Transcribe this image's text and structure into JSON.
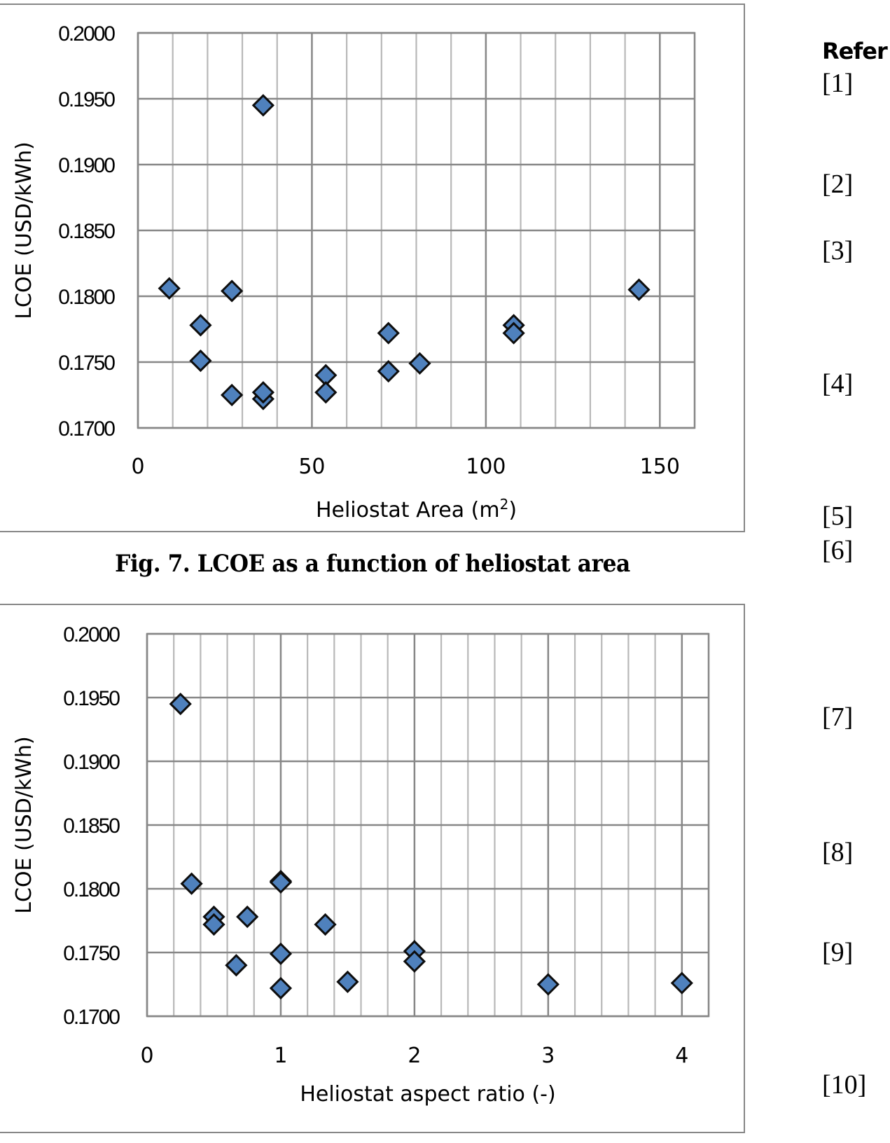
{
  "chart_data": [
    {
      "type": "scatter",
      "id": "fig7",
      "title": "",
      "xlabel": "Heliostat Area (m",
      "xlabel_sup": "2",
      "xlabel_suffix": ")",
      "ylabel": "LCOE (USD/kWh)",
      "xlim": [
        0,
        160
      ],
      "ylim": [
        0.17,
        0.2
      ],
      "x_major_ticks": [
        0,
        50,
        100,
        150
      ],
      "x_tick_labels": [
        "0",
        "50",
        "100",
        "150"
      ],
      "x_minor_step": 10,
      "y_ticks": [
        0.17,
        0.175,
        0.18,
        0.185,
        0.19,
        0.195,
        0.2
      ],
      "y_tick_labels": [
        "0.1700",
        "0.1750",
        "0.1800",
        "0.1850",
        "0.1900",
        "0.1950",
        "0.2000"
      ],
      "grid": true,
      "legend": "none",
      "marker": "diamond",
      "marker_color": "#4f81bd",
      "series": [
        {
          "name": "LCOE",
          "points": [
            [
              9,
              0.1806
            ],
            [
              18,
              0.1778
            ],
            [
              18,
              0.1751
            ],
            [
              27,
              0.1804
            ],
            [
              27,
              0.1725
            ],
            [
              36,
              0.1945
            ],
            [
              36,
              0.1722
            ],
            [
              36,
              0.1727
            ],
            [
              54,
              0.174
            ],
            [
              54,
              0.1727
            ],
            [
              72,
              0.1772
            ],
            [
              72,
              0.1743
            ],
            [
              81,
              0.1749
            ],
            [
              108,
              0.1778
            ],
            [
              108,
              0.1772
            ],
            [
              144,
              0.1805
            ]
          ]
        }
      ]
    },
    {
      "type": "scatter",
      "id": "fig8",
      "title": "",
      "xlabel": "Heliostat aspect ratio (-)",
      "ylabel": "LCOE (USD/kWh)",
      "xlim": [
        0,
        4.2
      ],
      "ylim": [
        0.17,
        0.2
      ],
      "x_major_ticks": [
        0,
        1,
        2,
        3,
        4
      ],
      "x_tick_labels": [
        "0",
        "1",
        "2",
        "3",
        "4"
      ],
      "x_minor_step": 0.2,
      "y_ticks": [
        0.17,
        0.175,
        0.18,
        0.185,
        0.19,
        0.195,
        0.2
      ],
      "y_tick_labels": [
        "0.1700",
        "0.1750",
        "0.1800",
        "0.1850",
        "0.1900",
        "0.1950",
        "0.2000"
      ],
      "grid": true,
      "legend": "none",
      "marker": "diamond",
      "marker_color": "#4f81bd",
      "series": [
        {
          "name": "LCOE",
          "points": [
            [
              0.25,
              0.1945
            ],
            [
              0.333,
              0.1804
            ],
            [
              0.5,
              0.1778
            ],
            [
              0.5,
              0.1772
            ],
            [
              0.667,
              0.174
            ],
            [
              0.75,
              0.1778
            ],
            [
              1,
              0.1806
            ],
            [
              1,
              0.1805
            ],
            [
              1,
              0.1749
            ],
            [
              1,
              0.1722
            ],
            [
              1.333,
              0.1772
            ],
            [
              1.5,
              0.1727
            ],
            [
              2,
              0.1751
            ],
            [
              2,
              0.1743
            ],
            [
              3,
              0.1725
            ],
            [
              4,
              0.1726
            ]
          ]
        }
      ]
    }
  ],
  "captions": {
    "fig7": "Fig. 7. LCOE as a function of heliostat area"
  },
  "references": {
    "heading": "Refer",
    "items": [
      "[1]",
      "[2]",
      "[3]",
      "[4]",
      "[5]",
      "[6]",
      "[7]",
      "[8]",
      "[9]",
      "[10]"
    ]
  }
}
